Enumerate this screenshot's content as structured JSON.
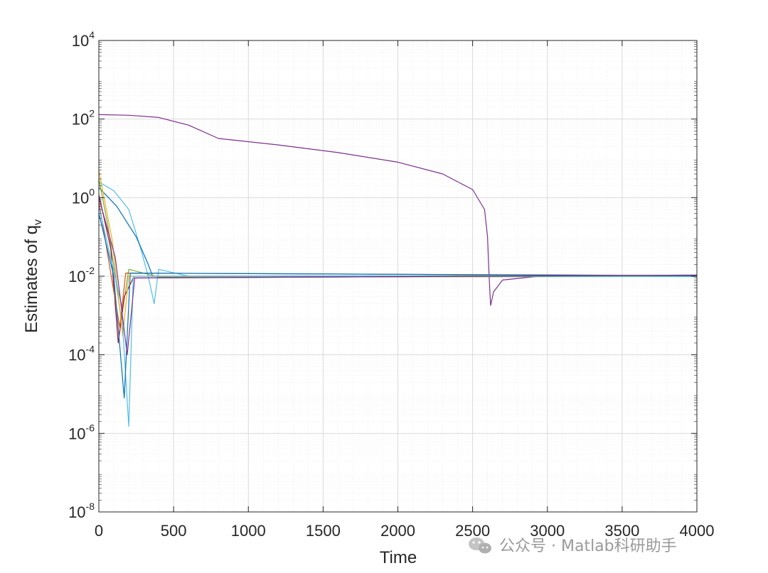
{
  "chart_data": {
    "type": "line",
    "title": "",
    "xlabel": "Time",
    "ylabel": "Estimates of q",
    "ylabel_subscript": "v",
    "xlim": [
      0,
      4000
    ],
    "ylim": [
      1e-08,
      10000.0
    ],
    "yscale": "log",
    "grid": true,
    "minor_grid": true,
    "legend": "none",
    "x_ticks": [
      "0",
      "500",
      "1000",
      "1500",
      "2000",
      "2500",
      "3000",
      "3500",
      "4000"
    ],
    "y_ticks": [
      {
        "base": "10",
        "exp": "-8",
        "value": 1e-08
      },
      {
        "base": "10",
        "exp": "-6",
        "value": 1e-06
      },
      {
        "base": "10",
        "exp": "-4",
        "value": 0.0001
      },
      {
        "base": "10",
        "exp": "-2",
        "value": 0.01
      },
      {
        "base": "10",
        "exp": "0",
        "value": 1
      },
      {
        "base": "10",
        "exp": "2",
        "value": 100
      },
      {
        "base": "10",
        "exp": "4",
        "value": 10000
      }
    ],
    "series": [
      {
        "color": "#7E2F8E",
        "points": [
          [
            0,
            130
          ],
          [
            200,
            125
          ],
          [
            400,
            110
          ],
          [
            600,
            70
          ],
          [
            800,
            32
          ],
          [
            1200,
            22
          ],
          [
            1600,
            14
          ],
          [
            2000,
            8
          ],
          [
            2300,
            4
          ],
          [
            2500,
            1.6
          ],
          [
            2580,
            0.5
          ],
          [
            2600,
            0.1
          ],
          [
            2610,
            0.01
          ],
          [
            2620,
            0.0018
          ],
          [
            2640,
            0.004
          ],
          [
            2700,
            0.008
          ],
          [
            3000,
            0.0105
          ],
          [
            4000,
            0.0105
          ]
        ]
      },
      {
        "color": "#4DBEEE",
        "points": [
          [
            0,
            2.5
          ],
          [
            100,
            1.5
          ],
          [
            200,
            0.5
          ],
          [
            280,
            0.05
          ],
          [
            330,
            0.01
          ],
          [
            370,
            0.002
          ],
          [
            400,
            0.015
          ],
          [
            600,
            0.01
          ],
          [
            4000,
            0.0105
          ]
        ]
      },
      {
        "color": "#0072BD",
        "points": [
          [
            0,
            1.8
          ],
          [
            120,
            0.6
          ],
          [
            250,
            0.1
          ],
          [
            330,
            0.02
          ],
          [
            360,
            0.01
          ],
          [
            4000,
            0.0102
          ]
        ]
      },
      {
        "color": "#77AC30",
        "points": [
          [
            0,
            3
          ],
          [
            60,
            0.2
          ],
          [
            110,
            0.01
          ],
          [
            150,
            0.0008
          ],
          [
            200,
            0.015
          ],
          [
            400,
            0.0095
          ],
          [
            4000,
            0.0098
          ]
        ]
      },
      {
        "color": "#A2142F",
        "points": [
          [
            0,
            1.2
          ],
          [
            80,
            0.05
          ],
          [
            130,
            0.0002
          ],
          [
            170,
            0.003
          ],
          [
            230,
            0.009
          ],
          [
            4000,
            0.0106
          ]
        ]
      },
      {
        "color": "#D95319",
        "points": [
          [
            0,
            0.8
          ],
          [
            70,
            0.02
          ],
          [
            140,
            0.0005
          ],
          [
            180,
            0.012
          ],
          [
            4000,
            0.0104
          ]
        ]
      },
      {
        "color": "#EDB120",
        "points": [
          [
            0,
            5
          ],
          [
            90,
            0.08
          ],
          [
            160,
            0.0003
          ],
          [
            200,
            0.01
          ],
          [
            4000,
            0.0101
          ]
        ]
      },
      {
        "color": "#4DBEEE",
        "points": [
          [
            0,
            0.6
          ],
          [
            150,
            0.002
          ],
          [
            200,
            1.5e-06
          ],
          [
            230,
            0.01
          ],
          [
            4000,
            0.0099
          ]
        ]
      },
      {
        "color": "#0072BD",
        "points": [
          [
            0,
            0.4
          ],
          [
            100,
            0.01
          ],
          [
            170,
            8e-06
          ],
          [
            210,
            0.012
          ],
          [
            4000,
            0.0103
          ]
        ]
      },
      {
        "color": "#7E2F8E",
        "points": [
          [
            0,
            1
          ],
          [
            110,
            0.03
          ],
          [
            190,
            0.0001
          ],
          [
            240,
            0.009
          ],
          [
            4000,
            0.0107
          ]
        ]
      }
    ]
  },
  "watermark": {
    "text": "公众号 · Matlab科研助手",
    "icon": "wechat-icon"
  }
}
